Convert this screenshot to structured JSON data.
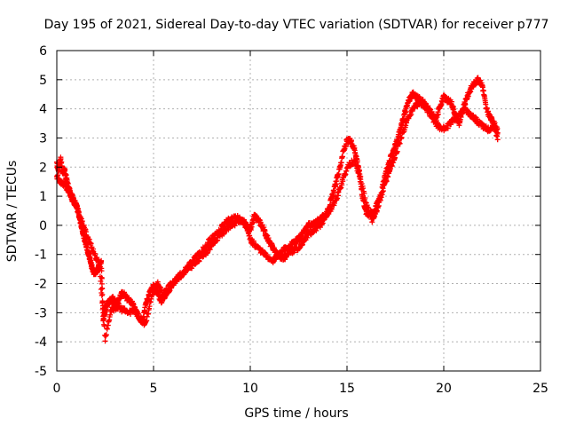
{
  "chart_data": {
    "type": "scatter",
    "title": "Day 195 of 2021, Sidereal Day-to-day VTEC variation (SDTVAR) for receiver p777",
    "xlabel": "GPS time / hours",
    "ylabel": "SDTVAR / TECUs",
    "xlim": [
      0,
      25
    ],
    "ylim": [
      -5,
      6
    ],
    "xticks": [
      0,
      5,
      10,
      15,
      20,
      25
    ],
    "yticks": [
      -5,
      -4,
      -3,
      -2,
      -1,
      0,
      1,
      2,
      3,
      4,
      5,
      6
    ],
    "grid": true,
    "marker": "+",
    "series": [
      {
        "name": "SDTVAR",
        "color": "#ff0000",
        "x": [
          0.0,
          0.1,
          0.2,
          0.3,
          0.4,
          0.5,
          0.6,
          0.7,
          0.8,
          0.9,
          1.0,
          1.1,
          1.2,
          1.3,
          1.4,
          1.5,
          1.6,
          1.7,
          1.8,
          1.9,
          2.0,
          2.1,
          2.2,
          2.3,
          2.4,
          2.5,
          2.6,
          2.7,
          2.8,
          2.9,
          3.0,
          3.2,
          3.4,
          3.6,
          3.8,
          4.0,
          4.2,
          4.4,
          4.6,
          4.8,
          5.0,
          5.2,
          5.4,
          5.6,
          5.8,
          6.0,
          6.3,
          6.6,
          6.9,
          7.2,
          7.5,
          7.8,
          8.1,
          8.4,
          8.7,
          9.0,
          9.3,
          9.6,
          9.8,
          10.0,
          10.2,
          10.4,
          10.6,
          10.8,
          11.0,
          11.2,
          11.4,
          11.6,
          11.8,
          12.0,
          12.2,
          12.4,
          12.6,
          12.8,
          13.0,
          13.2,
          13.4,
          13.6,
          13.8,
          14.0,
          14.2,
          14.4,
          14.6,
          14.8,
          15.0,
          15.2,
          15.4,
          15.6,
          15.8,
          16.0,
          16.2,
          16.4,
          16.6,
          16.8,
          17.0,
          17.2,
          17.4,
          17.6,
          17.8,
          18.0,
          18.2,
          18.4,
          18.6,
          18.8,
          19.0,
          19.2,
          19.4,
          19.6,
          19.8,
          20.0,
          20.2,
          20.4,
          20.6,
          20.8,
          21.0,
          21.2,
          21.4,
          21.6,
          21.8,
          22.0,
          22.2,
          22.4,
          22.6,
          22.8
        ],
        "y": [
          2.1,
          1.9,
          2.3,
          1.8,
          1.9,
          1.6,
          1.3,
          1.1,
          0.9,
          0.8,
          0.7,
          0.5,
          0.2,
          -0.1,
          -0.4,
          -0.6,
          -0.9,
          -1.1,
          -1.4,
          -1.6,
          -1.6,
          -1.5,
          -1.4,
          -1.3,
          -3.2,
          -2.9,
          -2.7,
          -2.6,
          -2.6,
          -2.5,
          -2.7,
          -2.6,
          -2.3,
          -2.5,
          -2.6,
          -2.8,
          -3.1,
          -3.3,
          -2.7,
          -2.3,
          -2.1,
          -2.3,
          -2.6,
          -2.4,
          -2.2,
          -2.0,
          -1.8,
          -1.6,
          -1.3,
          -1.1,
          -0.9,
          -0.6,
          -0.4,
          -0.2,
          0.1,
          0.2,
          0.3,
          0.1,
          0.0,
          -0.2,
          0.3,
          0.2,
          0.0,
          -0.3,
          -0.6,
          -0.8,
          -1.0,
          -1.1,
          -1.1,
          -0.8,
          -0.6,
          -0.5,
          -0.4,
          -0.2,
          0.0,
          0.0,
          0.1,
          0.2,
          0.3,
          0.5,
          0.9,
          1.4,
          1.9,
          2.5,
          2.9,
          2.9,
          2.6,
          2.0,
          1.0,
          0.4,
          0.4,
          0.5,
          0.8,
          1.2,
          1.8,
          2.2,
          2.6,
          2.9,
          3.4,
          3.9,
          4.3,
          4.5,
          4.4,
          4.3,
          4.2,
          4.0,
          3.8,
          3.6,
          4.1,
          4.4,
          4.3,
          4.2,
          3.8,
          3.5,
          4.0,
          4.4,
          4.7,
          4.9,
          5.0,
          4.8,
          4.0,
          3.7,
          3.5,
          3.2
        ],
        "x2": [
          0.0,
          0.2,
          0.4,
          0.6,
          0.8,
          1.0,
          1.3,
          1.6,
          1.9,
          2.2,
          2.5,
          2.8,
          3.1,
          3.4,
          3.7,
          4.0,
          4.3,
          4.6,
          4.9,
          5.2,
          5.5,
          5.8,
          6.1,
          6.4,
          6.7,
          7.0,
          7.3,
          7.6,
          7.9,
          8.2,
          8.5,
          8.8,
          9.1,
          9.4,
          9.7,
          10.0,
          10.3,
          10.6,
          10.9,
          11.2,
          11.5,
          11.8,
          12.1,
          12.4,
          12.7,
          13.0,
          13.3,
          13.6,
          13.9,
          14.2,
          14.5,
          14.8,
          15.1,
          15.4,
          15.7,
          16.0,
          16.3,
          16.6,
          16.9,
          17.2,
          17.5,
          17.8,
          18.1,
          18.4,
          18.7,
          19.0,
          19.3,
          19.6,
          19.9,
          20.2,
          20.5,
          20.8,
          21.1,
          21.4,
          21.7,
          22.0,
          22.3,
          22.6,
          22.8
        ],
        "y2": [
          1.7,
          1.5,
          1.4,
          1.2,
          1.0,
          0.6,
          0.1,
          -0.4,
          -0.9,
          -1.4,
          -3.9,
          -2.9,
          -2.8,
          -2.9,
          -3.0,
          -2.9,
          -3.2,
          -3.4,
          -2.4,
          -2.0,
          -2.4,
          -2.1,
          -1.9,
          -1.7,
          -1.5,
          -1.4,
          -1.2,
          -1.0,
          -0.8,
          -0.5,
          -0.3,
          -0.1,
          0.0,
          0.2,
          0.1,
          -0.5,
          -0.7,
          -0.9,
          -1.1,
          -1.2,
          -1.0,
          -0.8,
          -0.9,
          -0.8,
          -0.6,
          -0.3,
          -0.2,
          0.0,
          0.3,
          0.6,
          1.0,
          1.6,
          2.1,
          2.2,
          1.6,
          0.7,
          0.2,
          0.6,
          1.3,
          1.9,
          2.4,
          3.0,
          3.6,
          4.0,
          4.2,
          4.1,
          3.8,
          3.5,
          3.3,
          3.4,
          3.6,
          3.8,
          4.0,
          3.8,
          3.6,
          3.4,
          3.3,
          3.4,
          3.0
        ]
      }
    ]
  }
}
